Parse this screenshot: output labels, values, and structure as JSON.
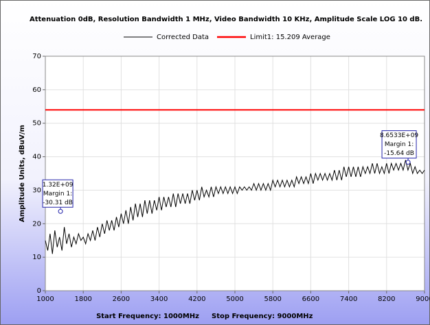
{
  "chart_data": {
    "type": "line",
    "title": "Attenuation 0dB, Resolution Bandwidth 1 MHz, Video Bandwidth 10 KHz, Amplitude Scale LOG 10 dB.",
    "y_label": "Amplitude Units, dBuV/m",
    "x_labels": [
      "Start Frequency: 1000MHz",
      "Stop Frequency: 9000MHz"
    ],
    "xlim": [
      1000,
      9000
    ],
    "xticks": [
      1000,
      1800,
      2600,
      3400,
      4200,
      5000,
      5800,
      6600,
      7400,
      8200,
      9000
    ],
    "ylim": [
      0,
      70
    ],
    "yticks": [
      0,
      10,
      20,
      30,
      40,
      50,
      60,
      70
    ],
    "grid": true,
    "series": [
      {
        "name": "Corrected Data",
        "color": "#000000",
        "x": [
          1000,
          1050,
          1100,
          1150,
          1200,
          1250,
          1300,
          1350,
          1400,
          1450,
          1500,
          1550,
          1600,
          1650,
          1700,
          1750,
          1800,
          1850,
          1900,
          1950,
          2000,
          2050,
          2100,
          2150,
          2200,
          2250,
          2300,
          2350,
          2400,
          2450,
          2500,
          2550,
          2600,
          2650,
          2700,
          2750,
          2800,
          2850,
          2900,
          2950,
          3000,
          3050,
          3100,
          3150,
          3200,
          3250,
          3300,
          3350,
          3400,
          3450,
          3500,
          3550,
          3600,
          3650,
          3700,
          3750,
          3800,
          3850,
          3900,
          3950,
          4000,
          4050,
          4100,
          4150,
          4200,
          4250,
          4300,
          4350,
          4400,
          4450,
          4500,
          4550,
          4600,
          4650,
          4700,
          4750,
          4800,
          4850,
          4900,
          4950,
          5000,
          5050,
          5100,
          5150,
          5200,
          5250,
          5300,
          5350,
          5400,
          5450,
          5500,
          5550,
          5600,
          5650,
          5700,
          5750,
          5800,
          5850,
          5900,
          5950,
          6000,
          6050,
          6100,
          6150,
          6200,
          6250,
          6300,
          6350,
          6400,
          6450,
          6500,
          6550,
          6600,
          6650,
          6700,
          6750,
          6800,
          6850,
          6900,
          6950,
          7000,
          7050,
          7100,
          7150,
          7200,
          7250,
          7300,
          7350,
          7400,
          7450,
          7500,
          7550,
          7600,
          7650,
          7700,
          7750,
          7800,
          7850,
          7900,
          7950,
          8000,
          8050,
          8100,
          8150,
          8200,
          8250,
          8300,
          8350,
          8400,
          8450,
          8500,
          8550,
          8600,
          8650,
          8700,
          8750,
          8800,
          8850,
          8900,
          8950,
          9000
        ],
        "values": [
          15,
          12,
          17,
          11,
          18,
          13,
          16,
          12,
          19,
          14,
          17,
          13,
          16,
          14,
          17,
          15,
          16,
          14,
          17,
          15,
          18,
          15,
          19,
          16,
          20,
          17,
          21,
          18,
          21,
          18,
          22,
          19,
          23,
          20,
          24,
          20,
          25,
          21,
          26,
          22,
          26,
          22,
          27,
          23,
          27,
          23,
          27,
          24,
          28,
          24,
          28,
          25,
          28,
          25,
          29,
          25,
          29,
          26,
          29,
          26,
          29,
          26,
          30,
          27,
          30,
          27,
          31,
          28,
          30,
          28,
          31,
          28,
          31,
          29,
          31,
          29,
          31,
          29,
          31,
          29,
          31,
          29,
          31,
          30,
          31,
          30,
          31,
          30,
          32,
          30,
          32,
          30,
          32,
          30,
          32,
          30,
          33,
          31,
          33,
          31,
          33,
          31,
          33,
          31,
          33,
          31,
          34,
          32,
          34,
          32,
          34,
          32,
          35,
          32,
          35,
          33,
          35,
          33,
          35,
          33,
          35,
          33,
          36,
          33,
          36,
          33,
          37,
          34,
          37,
          34,
          37,
          34,
          37,
          34,
          37,
          35,
          37,
          35,
          38,
          35,
          38,
          35,
          37,
          35,
          38,
          35,
          38,
          36,
          38,
          36,
          38,
          36,
          39,
          36,
          38,
          35,
          37,
          35,
          36,
          35,
          36
        ]
      },
      {
        "name": "Limit1: 15.209 Average",
        "color": "#ff0000",
        "x": [
          1000,
          9000
        ],
        "values": [
          54,
          54
        ]
      }
    ],
    "annotations": [
      {
        "x": 1320,
        "y": 23.69,
        "lines": [
          "1.32E+09",
          "Margin 1:",
          "-30.31 dB"
        ]
      },
      {
        "x": 8653,
        "y": 38.36,
        "lines": [
          "8.6533E+09",
          "Margin 1:",
          "-15.64 dB"
        ]
      }
    ]
  }
}
